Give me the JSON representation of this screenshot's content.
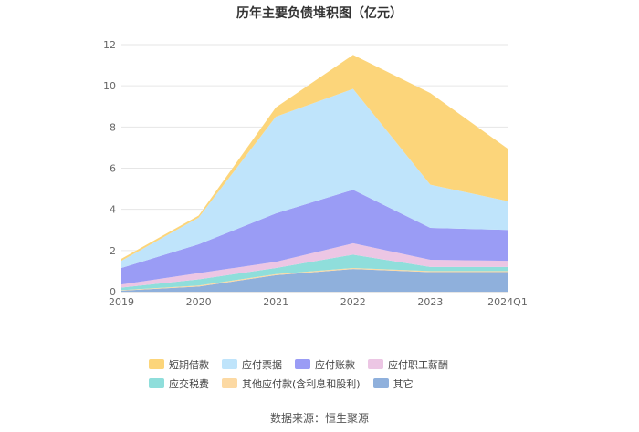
{
  "title": "历年主要负债堆积图（亿元）",
  "source": "数据来源：恒生聚源",
  "chart_data": {
    "type": "area",
    "stacked": true,
    "x": [
      "2019",
      "2020",
      "2021",
      "2022",
      "2023",
      "2024Q1"
    ],
    "ylim": [
      0,
      12
    ],
    "yticks": [
      0,
      2,
      4,
      6,
      8,
      10,
      12
    ],
    "grid": true,
    "legend_position": "bottom",
    "series": [
      {
        "name": "其它",
        "color": "#8fb0dc",
        "values": [
          0.05,
          0.25,
          0.8,
          1.1,
          0.95,
          0.95
        ]
      },
      {
        "name": "其他应付款(含利息和股利)",
        "color": "#fcd9a3",
        "values": [
          0.02,
          0.05,
          0.05,
          0.05,
          0.05,
          0.05
        ]
      },
      {
        "name": "应交税费",
        "color": "#8fdedb",
        "values": [
          0.13,
          0.3,
          0.3,
          0.65,
          0.2,
          0.2
        ]
      },
      {
        "name": "应付职工薪酬",
        "color": "#ecc6e4",
        "values": [
          0.15,
          0.3,
          0.3,
          0.55,
          0.35,
          0.3
        ]
      },
      {
        "name": "应付账款",
        "color": "#9a9cf5",
        "values": [
          0.8,
          1.4,
          2.35,
          2.6,
          1.55,
          1.5
        ]
      },
      {
        "name": "应付票据",
        "color": "#bfe4fb",
        "values": [
          0.35,
          1.3,
          4.7,
          4.9,
          2.1,
          1.4
        ]
      },
      {
        "name": "短期借款",
        "color": "#fcd57a",
        "values": [
          0.1,
          0.1,
          0.45,
          1.65,
          4.45,
          2.55
        ]
      }
    ],
    "legend_order": [
      "短期借款",
      "应付票据",
      "应付账款",
      "应付职工薪酬",
      "应交税费",
      "其他应付款(含利息和股利)",
      "其它"
    ]
  }
}
